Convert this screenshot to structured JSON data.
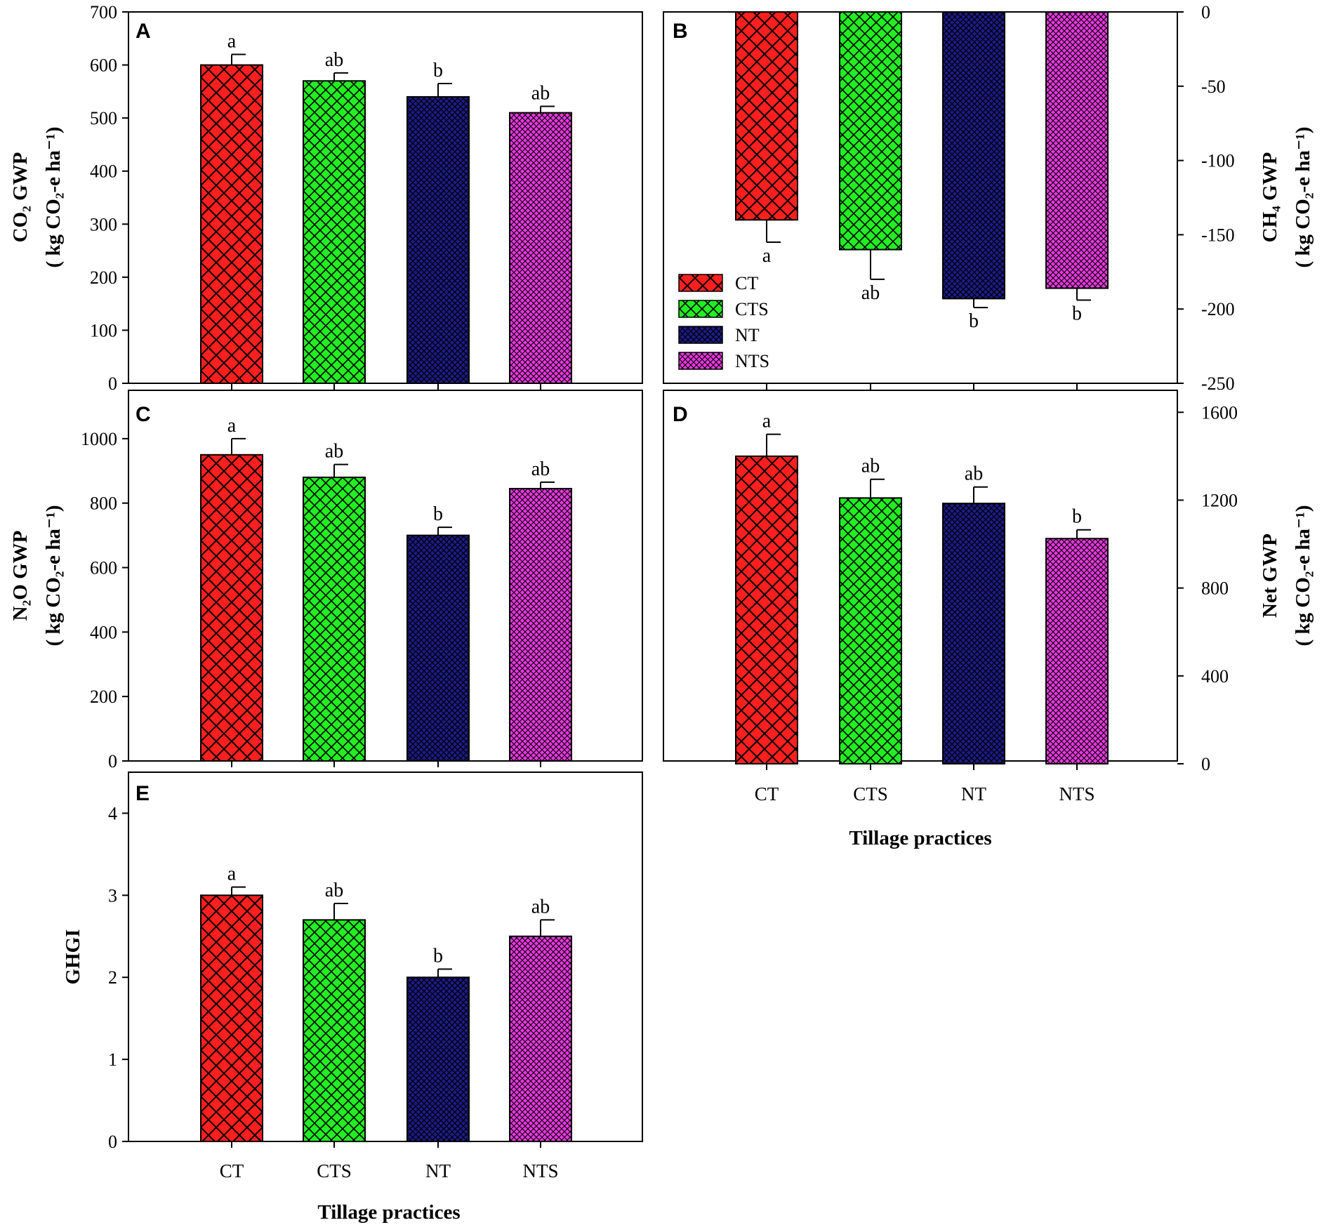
{
  "colors": {
    "CT": "#ff1f1f",
    "CTS": "#22ee22",
    "NT": "#1c1c8c",
    "NTS": "#e838e0"
  },
  "legend": [
    "CT",
    "CTS",
    "NT",
    "NTS"
  ],
  "x_label": "Tillage practices",
  "chart_data": [
    {
      "panel": "A",
      "type": "bar",
      "categories": [
        "CT",
        "CTS",
        "NT",
        "NTS"
      ],
      "values": [
        600,
        570,
        540,
        510
      ],
      "errors": [
        20,
        15,
        25,
        12
      ],
      "sig_letters": [
        "a",
        "ab",
        "b",
        "ab"
      ],
      "ylim": [
        0,
        700
      ],
      "yticks": [
        0,
        100,
        200,
        300,
        400,
        500,
        600,
        700
      ],
      "ylabel_main": "CO₂ GWP",
      "ylabel_unit": "( kg CO₂-e ha⁻¹)",
      "xlabel": ""
    },
    {
      "panel": "B",
      "type": "bar",
      "categories": [
        "CT",
        "CTS",
        "NT",
        "NTS"
      ],
      "values": [
        -140,
        -160,
        -193,
        -186
      ],
      "errors": [
        15,
        20,
        6,
        8
      ],
      "sig_letters": [
        "a",
        "ab",
        "b",
        "b"
      ],
      "ylim": [
        -250,
        0
      ],
      "yticks": [
        0,
        -50,
        -100,
        -150,
        -200,
        -250
      ],
      "ylabel_main": "CH₄ GWP",
      "ylabel_unit": "( kg CO₂-e ha⁻¹)",
      "legend": "lower-left",
      "xlabel": ""
    },
    {
      "panel": "C",
      "type": "bar",
      "categories": [
        "CT",
        "CTS",
        "NT",
        "NTS"
      ],
      "values": [
        950,
        880,
        700,
        845
      ],
      "errors": [
        50,
        40,
        25,
        20
      ],
      "sig_letters": [
        "a",
        "ab",
        "b",
        "ab"
      ],
      "ylim": [
        0,
        1150
      ],
      "yticks": [
        0,
        200,
        400,
        600,
        800,
        1000
      ],
      "ylabel_main": "N₂O GWP",
      "ylabel_unit": "( kg CO₂-e ha⁻¹)",
      "xlabel": ""
    },
    {
      "panel": "D",
      "type": "bar",
      "categories": [
        "CT",
        "CTS",
        "NT",
        "NTS"
      ],
      "values": [
        1400,
        1210,
        1185,
        1025
      ],
      "errors": [
        100,
        85,
        75,
        40
      ],
      "sig_letters": [
        "a",
        "ab",
        "ab",
        "b"
      ],
      "ylim": [
        0,
        1700
      ],
      "yticks": [
        0,
        400,
        800,
        1200,
        1600
      ],
      "ylabel_main": "Net GWP",
      "ylabel_unit": "( kg CO₂-e ha⁻¹)",
      "xlabel": "Tillage practices"
    },
    {
      "panel": "E",
      "type": "bar",
      "categories": [
        "CT",
        "CTS",
        "NT",
        "NTS"
      ],
      "values": [
        3.0,
        2.7,
        2.0,
        2.5
      ],
      "errors": [
        0.1,
        0.2,
        0.1,
        0.2
      ],
      "sig_letters": [
        "a",
        "ab",
        "b",
        "ab"
      ],
      "ylim": [
        0,
        4.5
      ],
      "yticks": [
        0,
        1,
        2,
        3,
        4
      ],
      "ylabel_main": "GHGI",
      "ylabel_unit": "",
      "xlabel": "Tillage practices"
    }
  ]
}
